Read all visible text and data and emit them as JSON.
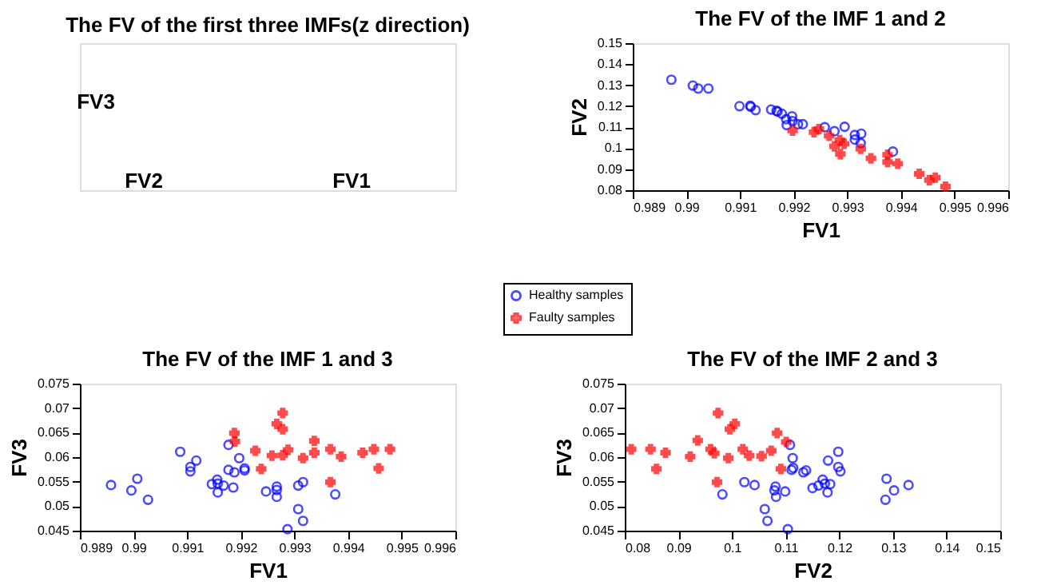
{
  "chart_data": [
    {
      "type": "other",
      "title": "The FV of the first three IMFs(z direction)",
      "annotations": [
        "FV3",
        "FV2",
        "FV1"
      ]
    },
    {
      "type": "scatter",
      "title": "The FV of the IMF 1 and 2",
      "xlabel": "FV1",
      "ylabel": "FV2",
      "xlim": [
        0.989,
        0.996
      ],
      "xticks": [
        0.989,
        0.99,
        0.991,
        0.992,
        0.993,
        0.994,
        0.995,
        0.996
      ],
      "ylim": [
        0.08,
        0.15
      ],
      "yticks": [
        0.08,
        0.09,
        0.1,
        0.11,
        0.12,
        0.13,
        0.14,
        0.15
      ],
      "grid": false,
      "legend": "bottom left",
      "series": [
        {
          "name": "Healthy samples",
          "color": "#0000ff",
          "marker": "circle",
          "x": [
            0.98972,
            0.99012,
            0.99022,
            0.99041,
            0.99099,
            0.99119,
            0.9912,
            0.99129,
            0.99158,
            0.99168,
            0.9917,
            0.99178,
            0.99186,
            0.99197,
            0.99187,
            0.99198,
            0.99208,
            0.99217,
            0.99258,
            0.99276,
            0.99295,
            0.99314,
            0.99314,
            0.99326,
            0.99325,
            0.99385
          ],
          "values": [
            0.1326,
            0.1298,
            0.1284,
            0.1284,
            0.12,
            0.1202,
            0.1197,
            0.1181,
            0.1184,
            0.1178,
            0.1174,
            0.1164,
            0.1138,
            0.1152,
            0.111,
            0.1129,
            0.1114,
            0.1114,
            0.11,
            0.1081,
            0.1102,
            0.1063,
            0.1041,
            0.1069,
            0.1024,
            0.0984
          ]
        },
        {
          "name": "Faulty samples",
          "color": "#ff0000",
          "marker": "cross",
          "x": [
            0.99198,
            0.99238,
            0.99247,
            0.99266,
            0.99276,
            0.99286,
            0.99287,
            0.99294,
            0.99325,
            0.99344,
            0.99375,
            0.99375,
            0.99394,
            0.99434,
            0.99453,
            0.99464,
            0.99483
          ],
          "values": [
            0.1084,
            0.1076,
            0.1091,
            0.1059,
            0.1009,
            0.1038,
            0.0972,
            0.1021,
            0.0997,
            0.0952,
            0.0969,
            0.0934,
            0.0926,
            0.0878,
            0.0848,
            0.086,
            0.0817
          ]
        }
      ]
    },
    {
      "type": "scatter",
      "title": "The FV of the IMF 1 and 3",
      "xlabel": "FV1",
      "ylabel": "FV3",
      "xlim": [
        0.989,
        0.996
      ],
      "xticks": [
        0.989,
        0.99,
        0.991,
        0.992,
        0.993,
        0.994,
        0.995,
        0.996
      ],
      "ylim": [
        0.045,
        0.075
      ],
      "yticks": [
        0.045,
        0.05,
        0.055,
        0.06,
        0.065,
        0.07,
        0.075
      ],
      "grid": false,
      "series": [
        {
          "color": "#0000ff",
          "marker": "circle",
          "x": [
            0.98958,
            0.98996,
            0.99007,
            0.99027,
            0.99087,
            0.99106,
            0.99106,
            0.99117,
            0.99146,
            0.99156,
            0.99157,
            0.99157,
            0.99168,
            0.99177,
            0.99177,
            0.99186,
            0.99188,
            0.99197,
            0.99207,
            0.99207,
            0.99247,
            0.99267,
            0.99267,
            0.99267,
            0.99287,
            0.99307,
            0.99307,
            0.99316,
            0.99316,
            0.99376
          ],
          "values": [
            0.0543,
            0.0532,
            0.0556,
            0.0513,
            0.0611,
            0.058,
            0.0571,
            0.0593,
            0.0545,
            0.0554,
            0.0546,
            0.0528,
            0.0542,
            0.0625,
            0.0574,
            0.0538,
            0.0569,
            0.0598,
            0.0577,
            0.0573,
            0.053,
            0.054,
            0.0533,
            0.0519,
            0.0453,
            0.0494,
            0.0542,
            0.0549,
            0.047,
            0.0524
          ]
        },
        {
          "color": "#ff0000",
          "marker": "cross",
          "x": [
            0.99188,
            0.99189,
            0.99227,
            0.99238,
            0.99258,
            0.99267,
            0.99278,
            0.99278,
            0.99278,
            0.99288,
            0.99316,
            0.99337,
            0.99337,
            0.99367,
            0.99367,
            0.99387,
            0.99427,
            0.99448,
            0.99457,
            0.99478
          ],
          "values": [
            0.0649,
            0.0632,
            0.0613,
            0.0576,
            0.0603,
            0.0668,
            0.069,
            0.0657,
            0.0604,
            0.0615,
            0.0598,
            0.0633,
            0.0609,
            0.0616,
            0.0549,
            0.0601,
            0.0609,
            0.0616,
            0.0577,
            0.0616
          ]
        }
      ]
    },
    {
      "type": "scatter",
      "title": "The FV of the IMF 2 and 3",
      "xlabel": "FV2",
      "ylabel": "FV3",
      "xlim": [
        0.08,
        0.15
      ],
      "xticks": [
        0.08,
        0.09,
        0.1,
        0.11,
        0.12,
        0.13,
        0.14,
        0.15
      ],
      "ylim": [
        0.045,
        0.075
      ],
      "yticks": [
        0.045,
        0.05,
        0.055,
        0.06,
        0.065,
        0.07,
        0.075
      ],
      "grid": false,
      "series": [
        {
          "color": "#0000ff",
          "marker": "circle",
          "x": [
            0.0982,
            0.1023,
            0.1042,
            0.1061,
            0.1066,
            0.1079,
            0.1081,
            0.1082,
            0.1099,
            0.1104,
            0.1108,
            0.1111,
            0.1113,
            0.1114,
            0.1133,
            0.1138,
            0.115,
            0.1161,
            0.1169,
            0.1173,
            0.1178,
            0.1179,
            0.1183,
            0.1198,
            0.1198,
            0.1202,
            0.1286,
            0.1288,
            0.1302,
            0.1329
          ],
          "values": [
            0.0524,
            0.0549,
            0.0543,
            0.0494,
            0.047,
            0.0532,
            0.054,
            0.0519,
            0.053,
            0.0453,
            0.0625,
            0.0574,
            0.0598,
            0.0578,
            0.0569,
            0.0573,
            0.0537,
            0.0542,
            0.0554,
            0.0546,
            0.0528,
            0.0593,
            0.0545,
            0.0611,
            0.058,
            0.0571,
            0.0513,
            0.0556,
            0.0532,
            0.0543
          ]
        },
        {
          "color": "#ff0000",
          "marker": "cross",
          "x": [
            0.0812,
            0.0848,
            0.0859,
            0.0876,
            0.0922,
            0.0936,
            0.096,
            0.0967,
            0.0972,
            0.0974,
            0.0993,
            0.0996,
            0.1005,
            0.102,
            0.1032,
            0.1055,
            0.1073,
            0.1084,
            0.1091,
            0.1101
          ],
          "values": [
            0.0616,
            0.0616,
            0.0576,
            0.0609,
            0.0601,
            0.0634,
            0.0616,
            0.0608,
            0.0549,
            0.069,
            0.0598,
            0.0657,
            0.0668,
            0.0616,
            0.0603,
            0.0602,
            0.0613,
            0.0649,
            0.0576,
            0.0631
          ]
        }
      ]
    }
  ]
}
